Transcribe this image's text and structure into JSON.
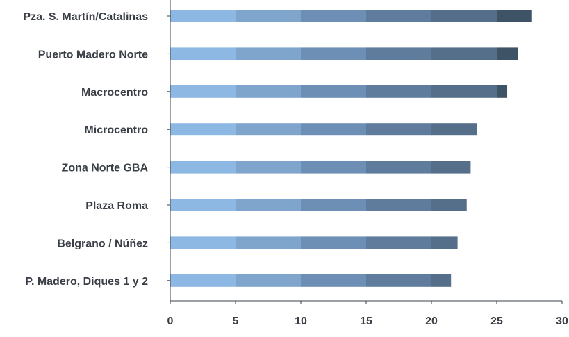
{
  "chart_data": {
    "type": "bar",
    "orientation": "horizontal",
    "stacked": true,
    "categories": [
      "Pza. S. Martín/Catalinas",
      "Puerto Madero Norte",
      "Macrocentro",
      "Microcentro",
      "Zona Norte GBA",
      "Plaza Roma",
      "Belgrano / Núñez",
      "P. Madero, Diques 1 y 2"
    ],
    "series": [
      {
        "values": [
          5,
          5,
          5,
          5,
          5,
          5,
          5,
          5
        ],
        "color": "#8db8e3"
      },
      {
        "values": [
          5,
          5,
          5,
          5,
          5,
          5,
          5,
          5
        ],
        "color": "#7fa5cd"
      },
      {
        "values": [
          5,
          5,
          5,
          5,
          5,
          5,
          5,
          5
        ],
        "color": "#6d8fb5"
      },
      {
        "values": [
          5,
          5,
          5,
          5,
          5,
          5,
          5,
          5
        ],
        "color": "#5f7c9c"
      },
      {
        "values": [
          5,
          5,
          5,
          3.5,
          3.0,
          2.7,
          2.0,
          1.5
        ],
        "color": "#556f8b"
      },
      {
        "values": [
          2.7,
          1.6,
          0.8,
          0,
          0,
          0,
          0,
          0
        ],
        "color": "#3f5366"
      }
    ],
    "xlim": [
      0,
      30
    ],
    "xticks": [
      "0",
      "5",
      "10",
      "15",
      "20",
      "25",
      "30"
    ],
    "grid": false,
    "legend": "none"
  }
}
